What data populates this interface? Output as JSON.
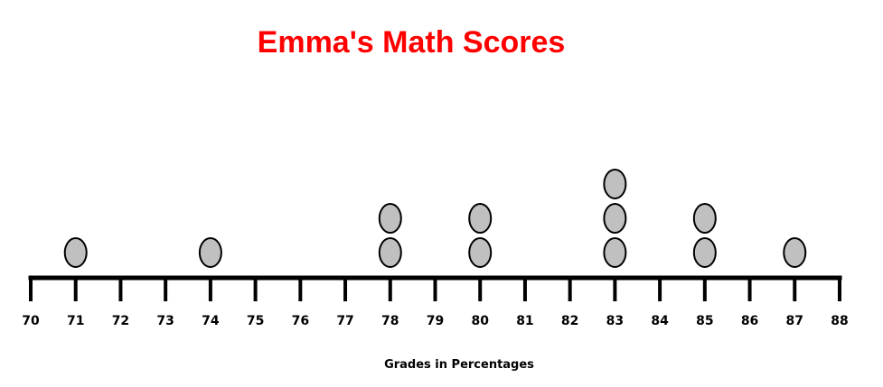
{
  "chart_data": {
    "type": "dot plot",
    "title": "Emma's Math Scores",
    "xlabel": "Grades in Percentages",
    "ylabel": "",
    "xlim": [
      70,
      88
    ],
    "ticks": [
      70,
      71,
      72,
      73,
      74,
      75,
      76,
      77,
      78,
      79,
      80,
      81,
      82,
      83,
      84,
      85,
      86,
      87,
      88
    ],
    "points": [
      {
        "x": 71,
        "count": 1
      },
      {
        "x": 74,
        "count": 1
      },
      {
        "x": 78,
        "count": 2
      },
      {
        "x": 80,
        "count": 2
      },
      {
        "x": 83,
        "count": 3
      },
      {
        "x": 85,
        "count": 2
      },
      {
        "x": 87,
        "count": 1
      }
    ],
    "marker_color": "#c0c0c0",
    "marker_stroke": "#000000",
    "title_color": "#ff0000"
  }
}
